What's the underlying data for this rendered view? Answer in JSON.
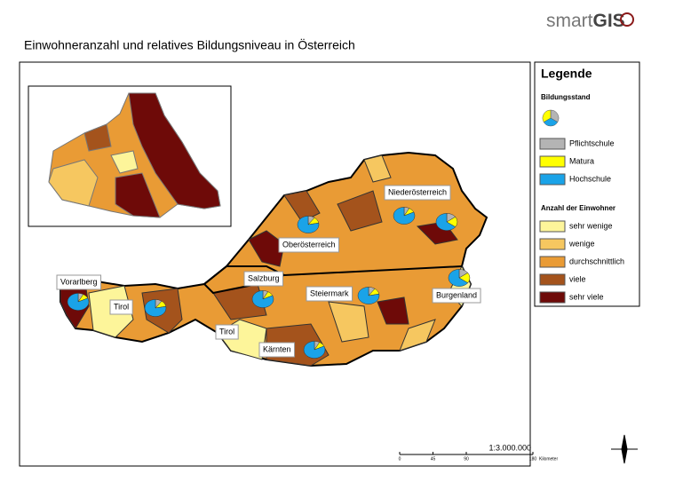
{
  "header": {
    "logo_text": "smart",
    "logo_bold": "GIS"
  },
  "title": "Einwohneranzahl und relatives Bildungsniveau in Österreich",
  "legend": {
    "title": "Legende",
    "pie_heading": "Bildungsstand",
    "pie_items": [
      {
        "label": "Pflichtschule",
        "color": "#b4b4b4"
      },
      {
        "label": "Matura",
        "color": "#ffff00"
      },
      {
        "label": "Hochschule",
        "color": "#1aa3e8"
      }
    ],
    "choropleth_heading": "Anzahl der Einwohner",
    "classes": [
      {
        "label": "sehr wenige",
        "color": "#fdf59a"
      },
      {
        "label": "wenige",
        "color": "#f6c760"
      },
      {
        "label": "durchschnittlich",
        "color": "#e99b35"
      },
      {
        "label": "viele",
        "color": "#a4531c"
      },
      {
        "label": "sehr viele",
        "color": "#6e0a08"
      }
    ]
  },
  "labels": [
    "Vorarlberg",
    "Tirol",
    "Salzburg",
    "Oberösterreich",
    "Niederösterreich",
    "Steiermark",
    "Burgenland",
    "Tirol",
    "Kärnten"
  ],
  "pies": [
    [
      8,
      10,
      82
    ],
    [
      10,
      12,
      78
    ],
    [
      8,
      10,
      82
    ],
    [
      10,
      12,
      78
    ],
    [
      8,
      10,
      82
    ],
    [
      15,
      20,
      65
    ],
    [
      10,
      12,
      78
    ],
    [
      15,
      20,
      65
    ],
    [
      8,
      10,
      82
    ]
  ],
  "scale": {
    "ratio": "1:3.000.000",
    "ticks": [
      0,
      45,
      90,
      180
    ],
    "unit": "Kilometer"
  }
}
